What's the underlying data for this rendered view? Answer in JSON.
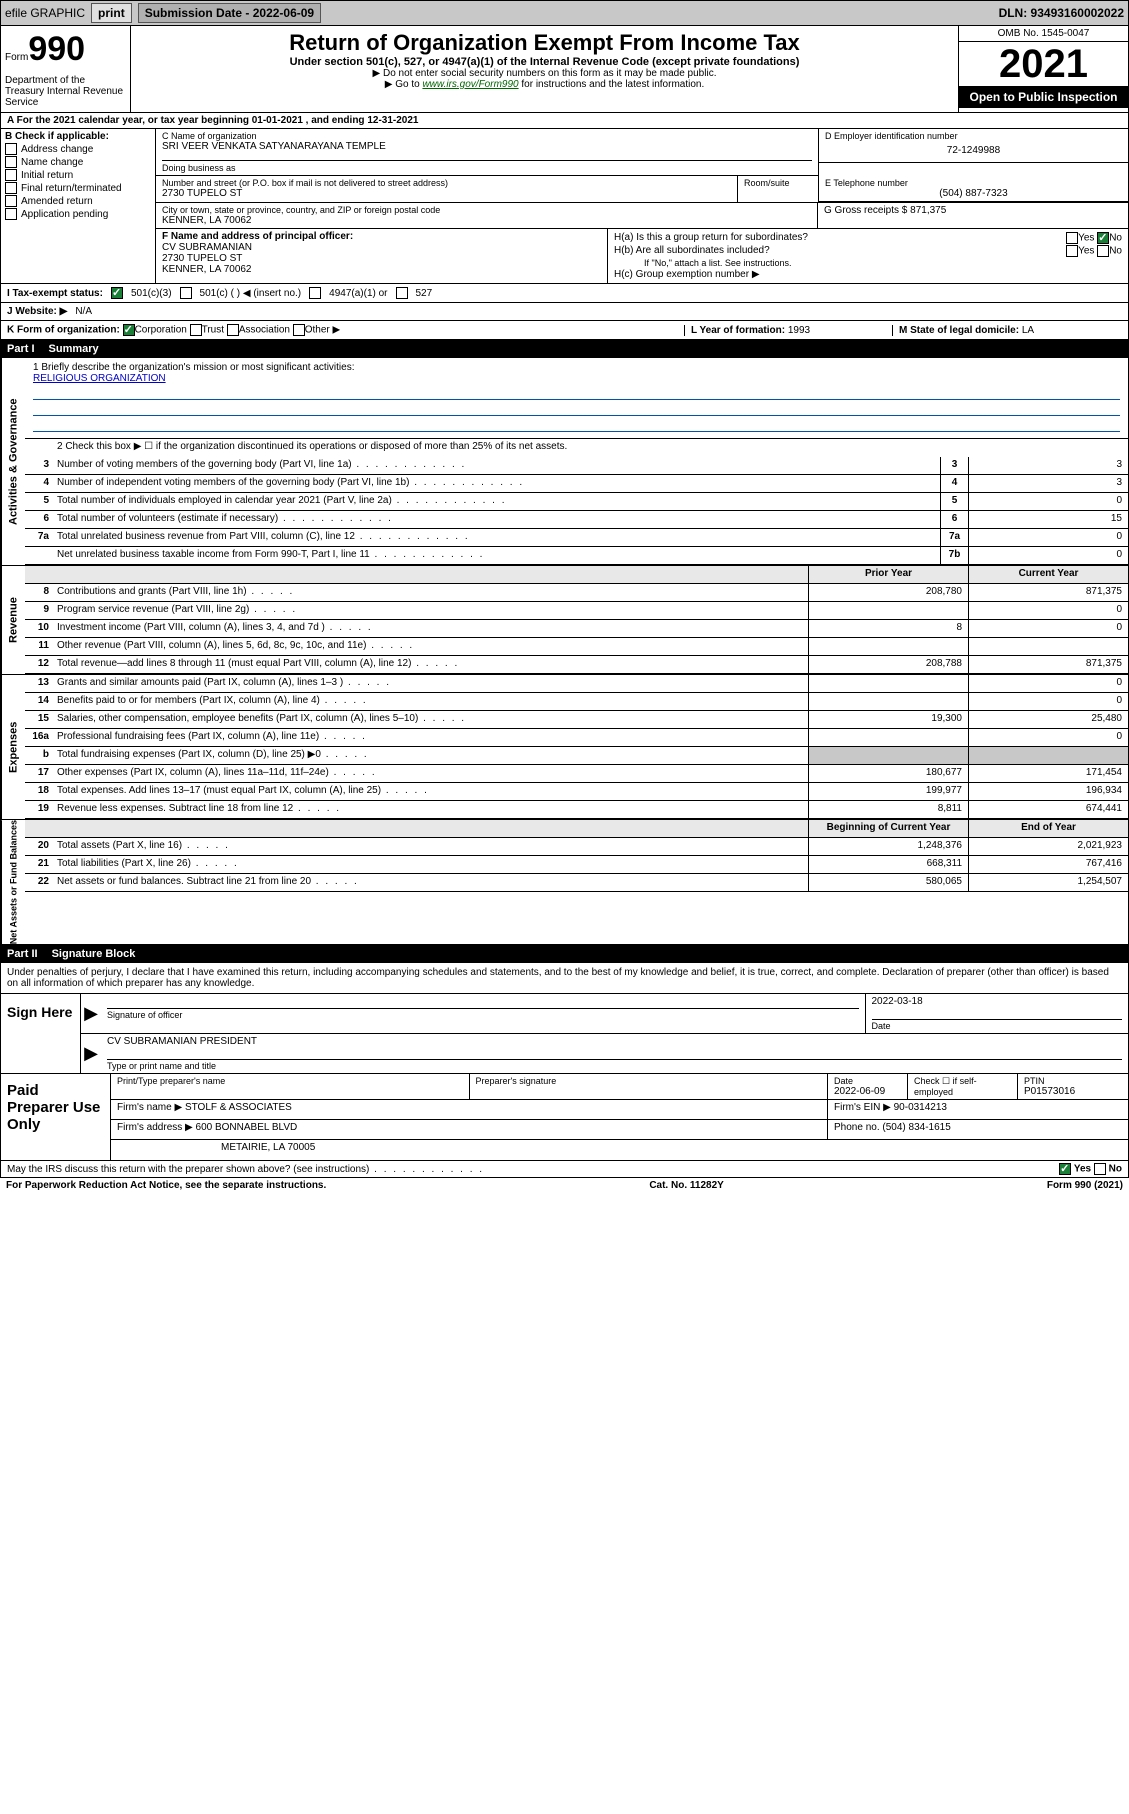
{
  "topbar": {
    "efile_label": "efile GRAPHIC",
    "print_btn": "print",
    "submission_label": "Submission Date - 2022-06-09",
    "dln": "DLN: 93493160002022"
  },
  "header": {
    "form_word": "Form",
    "form_num": "990",
    "dept": "Department of the Treasury Internal Revenue Service",
    "title": "Return of Organization Exempt From Income Tax",
    "sub": "Under section 501(c), 527, or 4947(a)(1) of the Internal Revenue Code (except private foundations)",
    "note1": "▶ Do not enter social security numbers on this form as it may be made public.",
    "note2_pre": "▶ Go to ",
    "note2_link": "www.irs.gov/Form990",
    "note2_post": " for instructions and the latest information.",
    "omb": "OMB No. 1545-0047",
    "year": "2021",
    "open_public": "Open to Public Inspection"
  },
  "rowA": "A For the 2021 calendar year, or tax year beginning 01-01-2021   , and ending 12-31-2021",
  "sectionB": {
    "label": "B Check if applicable:",
    "opts": [
      "Address change",
      "Name change",
      "Initial return",
      "Final return/terminated",
      "Amended return",
      "Application pending"
    ]
  },
  "sectionC": {
    "label": "C Name of organization",
    "org": "SRI VEER VENKATA SATYANARAYANA TEMPLE",
    "dba_label": "Doing business as",
    "addr_label": "Number and street (or P.O. box if mail is not delivered to street address)",
    "suite_label": "Room/suite",
    "addr": "2730 TUPELO ST",
    "city_label": "City or town, state or province, country, and ZIP or foreign postal code",
    "city": "KENNER, LA  70062"
  },
  "sectionD": {
    "label": "D Employer identification number",
    "ein": "72-1249988"
  },
  "sectionE": {
    "label": "E Telephone number",
    "tel": "(504) 887-7323"
  },
  "sectionG": {
    "label": "G Gross receipts $",
    "amount": "871,375"
  },
  "sectionF": {
    "label": "F Name and address of principal officer:",
    "name": "CV SUBRAMANIAN",
    "addr": "2730 TUPELO ST",
    "city": "KENNER, LA  70062"
  },
  "sectionH": {
    "ha": "H(a)  Is this a group return for subordinates?",
    "hb": "H(b)  Are all subordinates included?",
    "hb_note": "If \"No,\" attach a list. See instructions.",
    "hc": "H(c)  Group exemption number ▶",
    "yes": "Yes",
    "no": "No"
  },
  "rowI": {
    "label": "I   Tax-exempt status:",
    "opts": [
      "501(c)(3)",
      "501(c) (  ) ◀ (insert no.)",
      "4947(a)(1) or",
      "527"
    ]
  },
  "rowJ": {
    "label": "J   Website: ▶",
    "value": "N/A"
  },
  "rowK": {
    "label": "K Form of organization:",
    "opts": [
      "Corporation",
      "Trust",
      "Association",
      "Other ▶"
    ],
    "l_label": "L Year of formation:",
    "l_val": "1993",
    "m_label": "M State of legal domicile:",
    "m_val": "LA"
  },
  "part1": {
    "name": "Part I",
    "title": "Summary"
  },
  "mission": {
    "line1_label": "1  Briefly describe the organization's mission or most significant activities:",
    "text": "RELIGIOUS ORGANIZATION",
    "line2": "2  Check this box ▶ ☐  if the organization discontinued its operations or disposed of more than 25% of its net assets."
  },
  "ag_rows": [
    {
      "n": "3",
      "d": "Number of voting members of the governing body (Part VI, line 1a)",
      "b": "3",
      "v": "3"
    },
    {
      "n": "4",
      "d": "Number of independent voting members of the governing body (Part VI, line 1b)",
      "b": "4",
      "v": "3"
    },
    {
      "n": "5",
      "d": "Total number of individuals employed in calendar year 2021 (Part V, line 2a)",
      "b": "5",
      "v": "0"
    },
    {
      "n": "6",
      "d": "Total number of volunteers (estimate if necessary)",
      "b": "6",
      "v": "15"
    },
    {
      "n": "7a",
      "d": "Total unrelated business revenue from Part VIII, column (C), line 12",
      "b": "7a",
      "v": "0"
    },
    {
      "n": "",
      "d": "Net unrelated business taxable income from Form 990-T, Part I, line 11",
      "b": "7b",
      "v": "0"
    }
  ],
  "two_col_header": {
    "py": "Prior Year",
    "cy": "Current Year"
  },
  "rev_rows": [
    {
      "n": "8",
      "d": "Contributions and grants (Part VIII, line 1h)",
      "py": "208,780",
      "cy": "871,375"
    },
    {
      "n": "9",
      "d": "Program service revenue (Part VIII, line 2g)",
      "py": "",
      "cy": "0"
    },
    {
      "n": "10",
      "d": "Investment income (Part VIII, column (A), lines 3, 4, and 7d )",
      "py": "8",
      "cy": "0"
    },
    {
      "n": "11",
      "d": "Other revenue (Part VIII, column (A), lines 5, 6d, 8c, 9c, 10c, and 11e)",
      "py": "",
      "cy": ""
    },
    {
      "n": "12",
      "d": "Total revenue—add lines 8 through 11 (must equal Part VIII, column (A), line 12)",
      "py": "208,788",
      "cy": "871,375"
    }
  ],
  "exp_rows": [
    {
      "n": "13",
      "d": "Grants and similar amounts paid (Part IX, column (A), lines 1–3 )",
      "py": "",
      "cy": "0"
    },
    {
      "n": "14",
      "d": "Benefits paid to or for members (Part IX, column (A), line 4)",
      "py": "",
      "cy": "0"
    },
    {
      "n": "15",
      "d": "Salaries, other compensation, employee benefits (Part IX, column (A), lines 5–10)",
      "py": "19,300",
      "cy": "25,480"
    },
    {
      "n": "16a",
      "d": "Professional fundraising fees (Part IX, column (A), line 11e)",
      "py": "",
      "cy": "0"
    },
    {
      "n": "b",
      "d": "Total fundraising expenses (Part IX, column (D), line 25) ▶0",
      "py": "shaded",
      "cy": "shaded"
    },
    {
      "n": "17",
      "d": "Other expenses (Part IX, column (A), lines 11a–11d, 11f–24e)",
      "py": "180,677",
      "cy": "171,454"
    },
    {
      "n": "18",
      "d": "Total expenses. Add lines 13–17 (must equal Part IX, column (A), line 25)",
      "py": "199,977",
      "cy": "196,934"
    },
    {
      "n": "19",
      "d": "Revenue less expenses. Subtract line 18 from line 12",
      "py": "8,811",
      "cy": "674,441"
    }
  ],
  "na_header": {
    "bcy": "Beginning of Current Year",
    "eoy": "End of Year"
  },
  "na_rows": [
    {
      "n": "20",
      "d": "Total assets (Part X, line 16)",
      "py": "1,248,376",
      "cy": "2,021,923"
    },
    {
      "n": "21",
      "d": "Total liabilities (Part X, line 26)",
      "py": "668,311",
      "cy": "767,416"
    },
    {
      "n": "22",
      "d": "Net assets or fund balances. Subtract line 21 from line 20",
      "py": "580,065",
      "cy": "1,254,507"
    }
  ],
  "vert_labels": {
    "ag": "Activities & Governance",
    "rev": "Revenue",
    "exp": "Expenses",
    "na": "Net Assets or Fund Balances"
  },
  "part2": {
    "name": "Part II",
    "title": "Signature Block"
  },
  "sig_text": "Under penalties of perjury, I declare that I have examined this return, including accompanying schedules and statements, and to the best of my knowledge and belief, it is true, correct, and complete. Declaration of preparer (other than officer) is based on all information of which preparer has any knowledge.",
  "sign": {
    "here": "Sign Here",
    "sig_label": "Signature of officer",
    "date": "2022-03-18",
    "date_label": "Date",
    "name": "CV SUBRAMANIAN  PRESIDENT",
    "name_label": "Type or print name and title"
  },
  "paid": {
    "title": "Paid Preparer Use Only",
    "hdr_name": "Print/Type preparer's name",
    "hdr_sig": "Preparer's signature",
    "hdr_date": "Date",
    "date": "2022-06-09",
    "check_label": "Check ☐ if self-employed",
    "ptin_label": "PTIN",
    "ptin": "P01573016",
    "firm_name_label": "Firm's name    ▶",
    "firm_name": "STOLF & ASSOCIATES",
    "firm_ein_label": "Firm's EIN ▶",
    "firm_ein": "90-0314213",
    "firm_addr_label": "Firm's address ▶",
    "firm_addr": "600 BONNABEL BLVD",
    "firm_city": "METAIRIE, LA  70005",
    "phone_label": "Phone no.",
    "phone": "(504) 834-1615"
  },
  "may_irs": "May the IRS discuss this return with the preparer shown above? (see instructions)",
  "footer": {
    "pra": "For Paperwork Reduction Act Notice, see the separate instructions.",
    "cat": "Cat. No. 11282Y",
    "form": "Form 990 (2021)"
  }
}
